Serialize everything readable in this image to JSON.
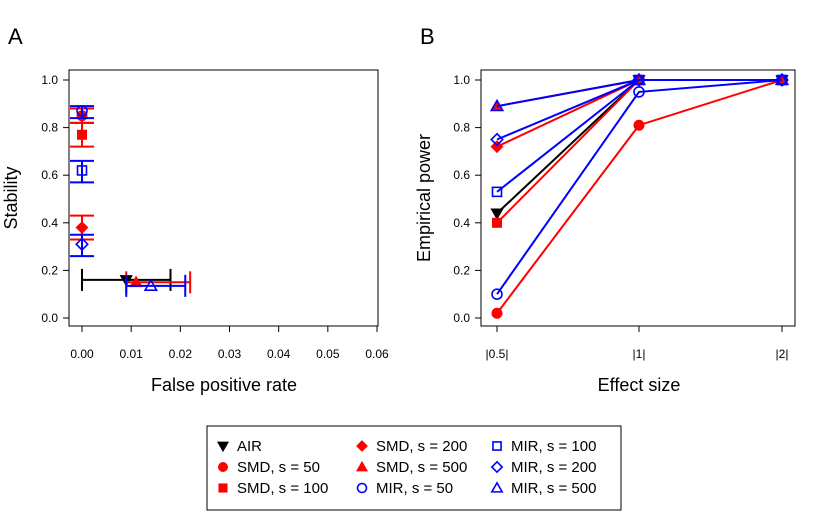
{
  "colors": {
    "AIR": "#000000",
    "SMD": "#ff0000",
    "MIR": "#0000ff"
  },
  "legend": [
    {
      "label": "AIR",
      "color": "#000000",
      "symbol": "triangle-down"
    },
    {
      "label": "SMD, s = 50",
      "color": "#ff0000",
      "symbol": "circle-filled"
    },
    {
      "label": "SMD, s = 100",
      "color": "#ff0000",
      "symbol": "square-filled"
    },
    {
      "label": "SMD, s = 200",
      "color": "#ff0000",
      "symbol": "diamond-filled"
    },
    {
      "label": "SMD, s = 500",
      "color": "#ff0000",
      "symbol": "triangle-up-filled"
    },
    {
      "label": "MIR, s = 50",
      "color": "#0000ff",
      "symbol": "circle-open"
    },
    {
      "label": "MIR, s = 100",
      "color": "#0000ff",
      "symbol": "square-open"
    },
    {
      "label": "MIR, s = 200",
      "color": "#0000ff",
      "symbol": "diamond-open"
    },
    {
      "label": "MIR, s = 500",
      "color": "#0000ff",
      "symbol": "triangle-up-open"
    }
  ],
  "chart_data": [
    {
      "panel": "A",
      "type": "scatter",
      "xlabel": "False positive rate",
      "ylabel": "Stability",
      "xlim": [
        0,
        0.06
      ],
      "ylim": [
        0,
        1.0
      ],
      "xticks": [
        "0.00",
        "0.01",
        "0.02",
        "0.03",
        "0.04",
        "0.05",
        "0.06"
      ],
      "yticks": [
        "0.0",
        "0.2",
        "0.4",
        "0.6",
        "0.8",
        "1.0"
      ],
      "points": [
        {
          "series": "AIR",
          "x": 0.009,
          "y": 0.16,
          "x_err": [
            0.0,
            0.018
          ],
          "y_err": null
        },
        {
          "series": "SMD, s = 50",
          "x": 0.0,
          "y": 0.85,
          "x_err": null,
          "y_err": [
            0.82,
            0.88
          ]
        },
        {
          "series": "SMD, s = 100",
          "x": 0.0,
          "y": 0.77,
          "x_err": null,
          "y_err": [
            0.72,
            0.82
          ]
        },
        {
          "series": "SMD, s = 200",
          "x": 0.0,
          "y": 0.38,
          "x_err": null,
          "y_err": [
            0.33,
            0.43
          ]
        },
        {
          "series": "SMD, s = 500",
          "x": 0.011,
          "y": 0.15,
          "x_err": [
            0.009,
            0.022
          ],
          "y_err": null
        },
        {
          "series": "MIR, s = 50",
          "x": 0.0,
          "y": 0.87,
          "x_err": null,
          "y_err": [
            0.84,
            0.89
          ]
        },
        {
          "series": "MIR, s = 100",
          "x": 0.0,
          "y": 0.62,
          "x_err": null,
          "y_err": [
            0.57,
            0.66
          ]
        },
        {
          "series": "MIR, s = 200",
          "x": 0.0,
          "y": 0.31,
          "x_err": null,
          "y_err": [
            0.26,
            0.35
          ]
        },
        {
          "series": "MIR, s = 500",
          "x": 0.014,
          "y": 0.135,
          "x_err": [
            0.009,
            0.021
          ],
          "y_err": null
        }
      ]
    },
    {
      "panel": "B",
      "type": "line",
      "xlabel": "Effect size",
      "ylabel": "Empirical power",
      "categories": [
        "|0.5|",
        "|1|",
        "|2|"
      ],
      "ylim": [
        0,
        1.0
      ],
      "yticks": [
        "0.0",
        "0.2",
        "0.4",
        "0.6",
        "0.8",
        "1.0"
      ],
      "series": [
        {
          "name": "AIR",
          "values": [
            0.44,
            1.0,
            1.0
          ]
        },
        {
          "name": "SMD, s = 50",
          "values": [
            0.02,
            0.81,
            1.0
          ]
        },
        {
          "name": "SMD, s = 100",
          "values": [
            0.4,
            1.0,
            1.0
          ]
        },
        {
          "name": "SMD, s = 200",
          "values": [
            0.72,
            1.0,
            1.0
          ]
        },
        {
          "name": "SMD, s = 500",
          "values": [
            0.89,
            1.0,
            1.0
          ]
        },
        {
          "name": "MIR, s = 50",
          "values": [
            0.1,
            0.95,
            1.0
          ]
        },
        {
          "name": "MIR, s = 100",
          "values": [
            0.53,
            1.0,
            1.0
          ]
        },
        {
          "name": "MIR, s = 200",
          "values": [
            0.75,
            1.0,
            1.0
          ]
        },
        {
          "name": "MIR, s = 500",
          "values": [
            0.89,
            1.0,
            1.0
          ]
        }
      ]
    }
  ]
}
